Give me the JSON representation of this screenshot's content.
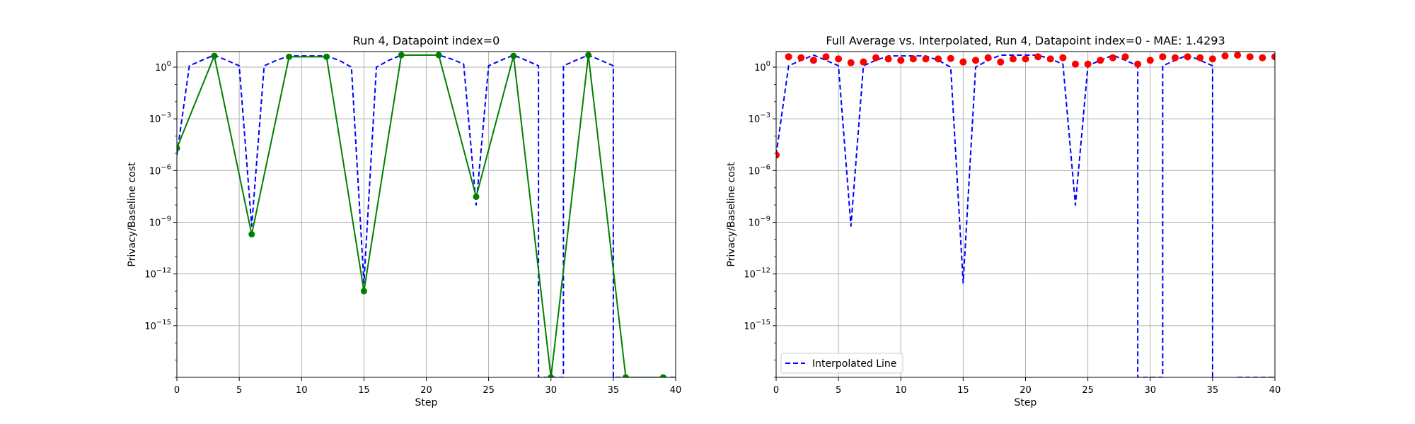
{
  "chart_data": [
    {
      "type": "line",
      "title": "Run 4, Datapoint index=0",
      "xlabel": "Step",
      "ylabel": "Privacy/Baseline cost",
      "xlim": [
        0,
        40
      ],
      "ylim": [
        1e-18,
        8
      ],
      "yscale": "log",
      "grid": true,
      "xticks": [
        0,
        5,
        10,
        15,
        20,
        25,
        30,
        35,
        40
      ],
      "yticks": [
        {
          "exp": 0,
          "base": "10",
          "sup": "0"
        },
        {
          "exp": -3,
          "base": "10",
          "sup": "−3"
        },
        {
          "exp": -6,
          "base": "10",
          "sup": "−6"
        },
        {
          "exp": -9,
          "base": "10",
          "sup": "−9"
        },
        {
          "exp": -12,
          "base": "10",
          "sup": "−12"
        },
        {
          "exp": -15,
          "base": "10",
          "sup": "−15"
        }
      ],
      "series": [
        {
          "style": "dashed",
          "color": "#0000ff",
          "marker": "none",
          "points": [
            [
              0,
              8e-06
            ],
            [
              1,
              1.2
            ],
            [
              2,
              2.5
            ],
            [
              3,
              5
            ],
            [
              4,
              2.5
            ],
            [
              5,
              1.2
            ],
            [
              6,
              6e-10
            ],
            [
              7,
              1.2
            ],
            [
              8,
              2.5
            ],
            [
              9,
              4.5
            ],
            [
              10,
              4.5
            ],
            [
              11,
              4.5
            ],
            [
              12,
              4.5
            ],
            [
              13,
              2.5
            ],
            [
              14,
              1
            ],
            [
              15,
              3e-13
            ],
            [
              16,
              1
            ],
            [
              17,
              2.5
            ],
            [
              18,
              5
            ],
            [
              19,
              5
            ],
            [
              20,
              5
            ],
            [
              21,
              5
            ],
            [
              22,
              3
            ],
            [
              23,
              1.5
            ],
            [
              24,
              1e-08
            ],
            [
              25,
              1.2
            ],
            [
              26,
              2.5
            ],
            [
              27,
              5
            ],
            [
              28,
              2.5
            ],
            [
              29,
              1.2
            ],
            [
              29,
              1e-18
            ],
            [
              30,
              1e-18
            ],
            [
              31,
              1e-18
            ],
            [
              31,
              1.2
            ],
            [
              32,
              2.5
            ],
            [
              33,
              5
            ],
            [
              34,
              2.5
            ],
            [
              35,
              1.2
            ],
            [
              35,
              1e-18
            ],
            [
              36,
              1e-18
            ],
            [
              37,
              1e-18
            ],
            [
              38,
              1e-18
            ],
            [
              39,
              1e-18
            ],
            [
              40,
              1e-18
            ]
          ]
        },
        {
          "style": "solid",
          "color": "#008000",
          "marker": "circle",
          "points": [
            [
              0,
              2e-05
            ],
            [
              3,
              4.5
            ],
            [
              6,
              2e-10
            ],
            [
              9,
              4
            ],
            [
              12,
              4
            ],
            [
              15,
              1e-13
            ],
            [
              18,
              5
            ],
            [
              21,
              5
            ],
            [
              24,
              3e-08
            ],
            [
              27,
              4.5
            ],
            [
              30,
              1e-18
            ],
            [
              33,
              5
            ],
            [
              36,
              1e-18
            ],
            [
              39,
              1e-18
            ]
          ]
        }
      ]
    },
    {
      "type": "line",
      "title": "Full Average vs. Interpolated, Run 4, Datapoint index=0 - MAE: 1.4293",
      "xlabel": "Step",
      "ylabel": "Privacy/Baseline cost",
      "xlim": [
        0,
        40
      ],
      "ylim": [
        1e-18,
        8
      ],
      "yscale": "log",
      "grid": true,
      "legend": {
        "position": "lower-left",
        "entries": [
          "Interpolated Line"
        ]
      },
      "xticks": [
        0,
        5,
        10,
        15,
        20,
        25,
        30,
        35,
        40
      ],
      "yticks": [
        {
          "exp": 0,
          "base": "10",
          "sup": "0"
        },
        {
          "exp": -3,
          "base": "10",
          "sup": "−3"
        },
        {
          "exp": -6,
          "base": "10",
          "sup": "−6"
        },
        {
          "exp": -9,
          "base": "10",
          "sup": "−9"
        },
        {
          "exp": -12,
          "base": "10",
          "sup": "−12"
        },
        {
          "exp": -15,
          "base": "10",
          "sup": "−15"
        }
      ],
      "series": [
        {
          "name": "Interpolated Line",
          "style": "dashed",
          "color": "#0000ff",
          "marker": "none",
          "points": [
            [
              0,
              8e-06
            ],
            [
              1,
              1.2
            ],
            [
              2,
              2.5
            ],
            [
              3,
              5
            ],
            [
              4,
              2.5
            ],
            [
              5,
              1.2
            ],
            [
              6,
              6e-10
            ],
            [
              7,
              1.2
            ],
            [
              8,
              2.5
            ],
            [
              9,
              4.5
            ],
            [
              10,
              4.5
            ],
            [
              11,
              4.5
            ],
            [
              12,
              4.5
            ],
            [
              13,
              2.5
            ],
            [
              14,
              1
            ],
            [
              15,
              3e-13
            ],
            [
              16,
              1
            ],
            [
              17,
              2.5
            ],
            [
              18,
              5
            ],
            [
              19,
              5
            ],
            [
              20,
              5
            ],
            [
              21,
              5
            ],
            [
              22,
              3
            ],
            [
              23,
              1.5
            ],
            [
              24,
              1e-08
            ],
            [
              25,
              1.2
            ],
            [
              26,
              2.5
            ],
            [
              27,
              5
            ],
            [
              28,
              2.5
            ],
            [
              29,
              1.2
            ],
            [
              29,
              1e-18
            ],
            [
              30,
              1e-18
            ],
            [
              31,
              1e-18
            ],
            [
              31,
              1.2
            ],
            [
              32,
              2.5
            ],
            [
              33,
              5
            ],
            [
              34,
              2.5
            ],
            [
              35,
              1.2
            ],
            [
              35,
              1e-18
            ],
            [
              36,
              null
            ],
            [
              37,
              1e-18
            ],
            [
              38,
              1e-18
            ],
            [
              39,
              1e-18
            ],
            [
              40,
              1e-18
            ]
          ]
        },
        {
          "style": "none",
          "color": "#ff0000",
          "marker": "circle",
          "points": [
            [
              0,
              8e-06
            ],
            [
              1,
              4
            ],
            [
              2,
              3.5
            ],
            [
              3,
              2.5
            ],
            [
              4,
              4
            ],
            [
              5,
              3
            ],
            [
              6,
              1.8
            ],
            [
              7,
              2
            ],
            [
              8,
              3.5
            ],
            [
              9,
              3
            ],
            [
              10,
              2.5
            ],
            [
              11,
              3
            ],
            [
              12,
              3
            ],
            [
              13,
              3
            ],
            [
              14,
              3.2
            ],
            [
              15,
              2
            ],
            [
              16,
              2.5
            ],
            [
              17,
              3.5
            ],
            [
              18,
              2
            ],
            [
              19,
              3
            ],
            [
              20,
              3
            ],
            [
              21,
              4
            ],
            [
              22,
              3
            ],
            [
              23,
              3.5
            ],
            [
              24,
              1.5
            ],
            [
              25,
              1.5
            ],
            [
              26,
              2.5
            ],
            [
              27,
              3.5
            ],
            [
              28,
              4
            ],
            [
              29,
              1.5
            ],
            [
              30,
              2.5
            ],
            [
              31,
              4
            ],
            [
              32,
              3.5
            ],
            [
              33,
              4
            ],
            [
              34,
              3.5
            ],
            [
              35,
              3
            ],
            [
              36,
              4.5
            ],
            [
              37,
              5
            ],
            [
              38,
              4
            ],
            [
              39,
              3.5
            ],
            [
              40,
              4
            ]
          ]
        }
      ]
    }
  ]
}
